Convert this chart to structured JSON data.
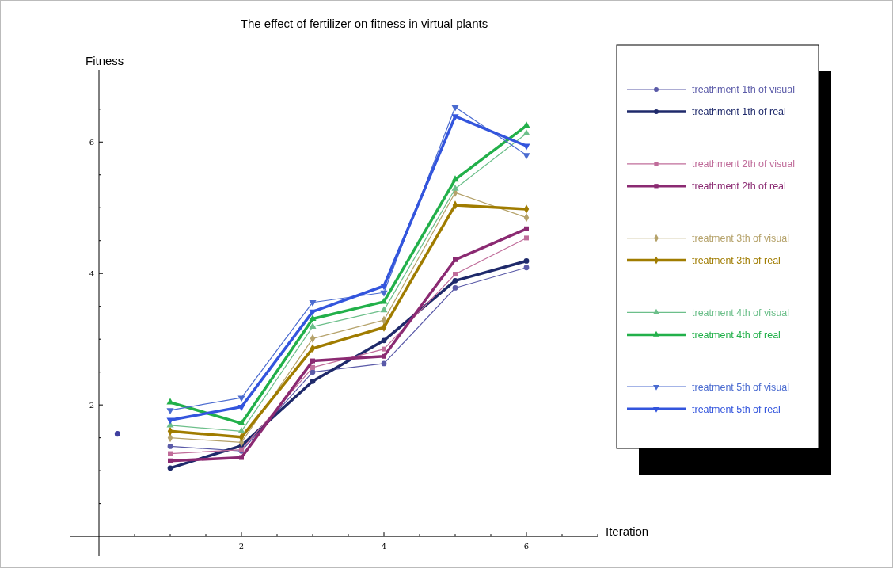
{
  "chart_data": {
    "type": "line",
    "title": "The effect of fertilizer on fitness in virtual plants",
    "xlabel": "Iteration",
    "ylabel": "Fitness",
    "x": [
      1,
      2,
      3,
      4,
      5,
      6
    ],
    "xlim": [
      -0.4,
      7
    ],
    "ylim": [
      -0.3,
      7.1
    ],
    "xticks": [
      {
        "value": 0.5,
        "label": null
      },
      {
        "value": 1,
        "label": null
      },
      {
        "value": 1.5,
        "label": null
      },
      2,
      {
        "value": 2.5,
        "label": null
      },
      {
        "value": 3,
        "label": null
      },
      {
        "value": 3.5,
        "label": null
      },
      4,
      {
        "value": 4.5,
        "label": null
      },
      {
        "value": 5,
        "label": null
      },
      {
        "value": 5.5,
        "label": null
      },
      6,
      {
        "value": 6.5,
        "label": null
      },
      {
        "value": 7,
        "label": null
      }
    ],
    "yticks": [
      {
        "value": 0.5,
        "label": null
      },
      {
        "value": 1,
        "label": null
      },
      {
        "value": 1.5,
        "label": null
      },
      2,
      {
        "value": 2.5,
        "label": null
      },
      {
        "value": 3,
        "label": null
      },
      {
        "value": 3.5,
        "label": null
      },
      4,
      {
        "value": 4.5,
        "label": null
      },
      {
        "value": 5,
        "label": null
      },
      {
        "value": 5.5,
        "label": null
      },
      6,
      {
        "value": 6.5,
        "label": null
      }
    ],
    "legend": "right",
    "grid": false,
    "series": [
      {
        "name": "treathment 1th of visual",
        "color": "#5a5aa8",
        "marker": "circle",
        "values": [
          1.37,
          1.3,
          2.5,
          2.63,
          3.78,
          4.09
        ]
      },
      {
        "name": "treathment 1th of real",
        "color": "#1f2a6b",
        "marker": "circle",
        "values": [
          1.04,
          1.38,
          2.36,
          2.98,
          3.89,
          4.19
        ]
      },
      {
        "name": "treathment 2th of visual",
        "color": "#c06c9a",
        "marker": "square",
        "values": [
          1.26,
          1.32,
          2.57,
          2.85,
          3.99,
          4.54
        ]
      },
      {
        "name": "treathment 2th of real",
        "color": "#8b2a72",
        "marker": "square",
        "values": [
          1.15,
          1.2,
          2.67,
          2.74,
          4.21,
          4.68
        ]
      },
      {
        "name": "treatment 3th of visual",
        "color": "#b5a26a",
        "marker": "diamond",
        "values": [
          1.5,
          1.43,
          3.01,
          3.29,
          5.23,
          4.85
        ]
      },
      {
        "name": "treatment 3th of real",
        "color": "#a07c00",
        "marker": "diamond",
        "values": [
          1.6,
          1.51,
          2.86,
          3.18,
          5.04,
          4.98
        ]
      },
      {
        "name": "treatment 4th of visual",
        "color": "#6cbf8a",
        "marker": "triangle",
        "values": [
          1.69,
          1.6,
          3.19,
          3.44,
          5.29,
          6.13
        ]
      },
      {
        "name": "treatment 4th of real",
        "color": "#22b04a",
        "marker": "triangle",
        "values": [
          2.04,
          1.72,
          3.31,
          3.57,
          5.43,
          6.25
        ]
      },
      {
        "name": "treatment 5th of visual",
        "color": "#4a6bd0",
        "marker": "triangle-down",
        "values": [
          1.92,
          2.11,
          3.56,
          3.71,
          6.53,
          5.8
        ]
      },
      {
        "name": "treatment 5th of real",
        "color": "#3355dd",
        "marker": "triangle-down",
        "values": [
          1.77,
          1.97,
          3.42,
          3.81,
          6.39,
          5.94
        ]
      },
      {
        "type": "scatter",
        "color": "#3f3f9f",
        "marker": "circle",
        "x": [
          0.26
        ],
        "values": [
          1.56
        ]
      }
    ]
  }
}
